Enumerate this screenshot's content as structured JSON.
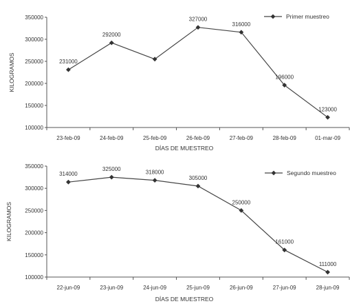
{
  "chart_data": [
    {
      "type": "line",
      "title": "",
      "xlabel": "DÍAS DE MUESTREO",
      "ylabel": "KILOGRAMOS",
      "categories": [
        "23-feb-09",
        "24-feb-09",
        "25-feb-09",
        "26-feb-09",
        "27-feb-09",
        "28-feb-09",
        "01-mar-09"
      ],
      "series": [
        {
          "name": "Primer muestreo",
          "values": [
            231000,
            292000,
            255000,
            327000,
            316000,
            196000,
            123000
          ],
          "data_labels": [
            "231000",
            "292000",
            "",
            "327000",
            "316000",
            "196000",
            "123000"
          ]
        }
      ],
      "ylim": [
        100000,
        350000
      ],
      "yticks": [
        "100000",
        "150000",
        "200000",
        "250000",
        "300000",
        "350000"
      ],
      "grid": false,
      "legend": "top-right",
      "colors": {
        "line": "#444444",
        "marker": "#333333"
      }
    },
    {
      "type": "line",
      "title": "",
      "xlabel": "DÍAS DE MUESTREO",
      "ylabel": "KILOGRAMOS",
      "categories": [
        "22-jun-09",
        "23-jun-09",
        "24-jun-09",
        "25-jun-09",
        "26-jun-09",
        "27-jun-09",
        "28-jun-09"
      ],
      "series": [
        {
          "name": "Segundo muestreo",
          "values": [
            314000,
            325000,
            318000,
            305000,
            250000,
            161000,
            111000
          ],
          "data_labels": [
            "314000",
            "325000",
            "318000",
            "305000",
            "250000",
            "161000",
            "111000"
          ]
        }
      ],
      "ylim": [
        100000,
        350000
      ],
      "yticks": [
        "100000",
        "150000",
        "200000",
        "250000",
        "300000",
        "350000"
      ],
      "grid": false,
      "legend": "top-right",
      "colors": {
        "line": "#444444",
        "marker": "#333333"
      }
    }
  ]
}
